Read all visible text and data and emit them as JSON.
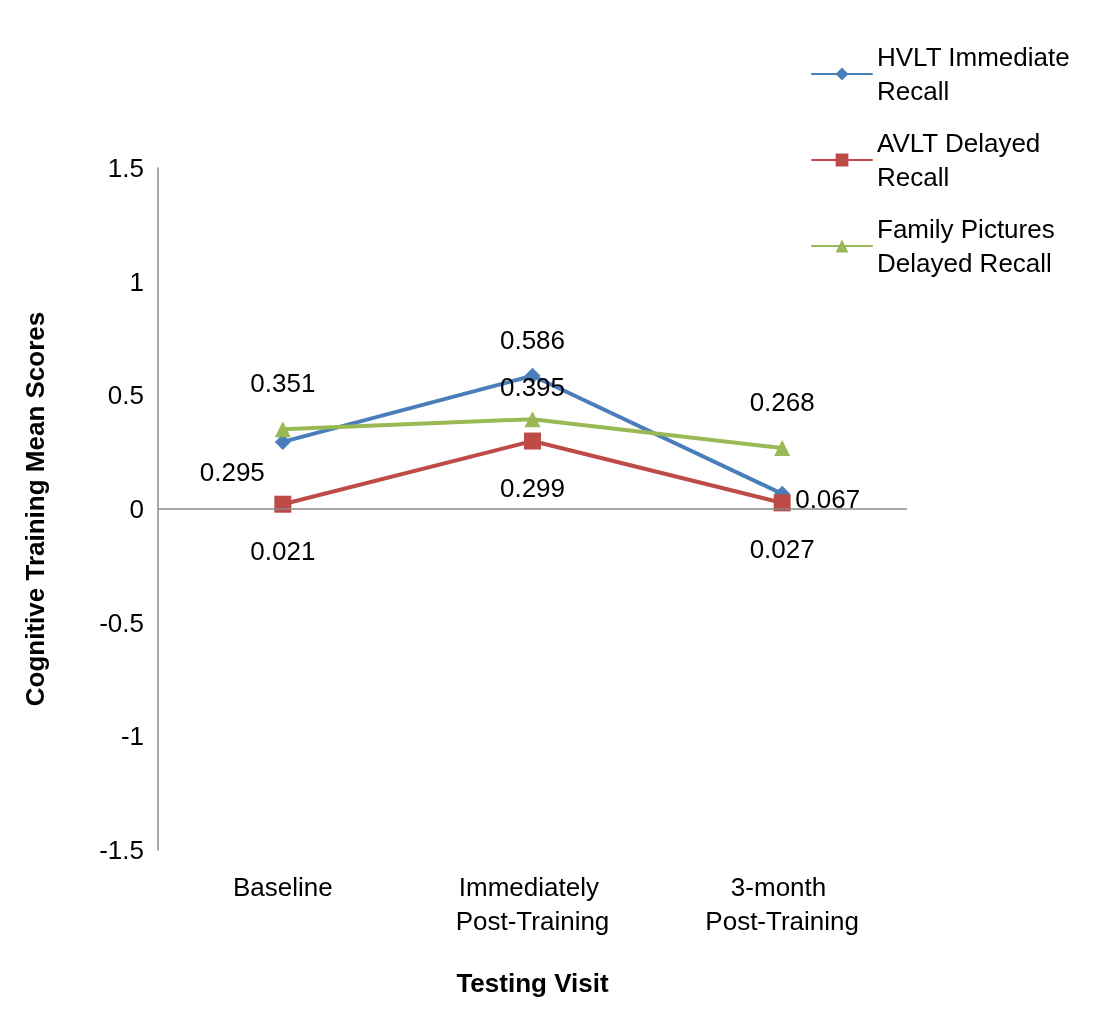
{
  "chart_data": {
    "type": "line",
    "xlabel": "Testing Visit",
    "ylabel": "Cognitive Training Mean Scores",
    "categories": [
      "Baseline",
      "Immediately Post-Training",
      "3-month Post-Training"
    ],
    "series": [
      {
        "name": "HVLT Immediate Recall",
        "color": "#4a7ebb",
        "values": [
          0.295,
          0.586,
          0.067
        ],
        "marker": "diamond"
      },
      {
        "name": "AVLT Delayed Recall",
        "color": "#be4b48",
        "values": [
          0.021,
          0.299,
          0.027
        ],
        "marker": "square"
      },
      {
        "name": "Family Pictures Delayed Recall",
        "color": "#98b954",
        "values": [
          0.351,
          0.395,
          0.268
        ],
        "marker": "triangle"
      }
    ],
    "ylim": [
      -1.5,
      1.5
    ],
    "yticks": [
      -1.5,
      -1,
      -0.5,
      0,
      0.5,
      1,
      1.5
    ],
    "grid": false,
    "ref_lines": [
      {
        "axis": "y",
        "value": 0,
        "color": "#888888"
      }
    ],
    "legend": "top right",
    "data_labels": true,
    "line_style": "solid"
  }
}
